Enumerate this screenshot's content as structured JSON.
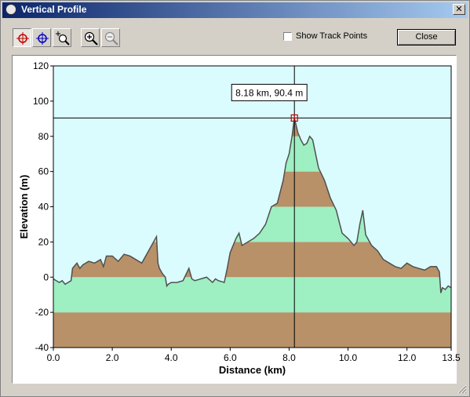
{
  "window": {
    "title": "Vertical Profile",
    "close_glyph": "✕"
  },
  "toolbar": {
    "buttons": [
      {
        "name": "select-point-tool",
        "icon": "crosshair-red-icon",
        "pressed": true
      },
      {
        "name": "pan-tool",
        "icon": "crosshair-blue-icon",
        "pressed": false
      },
      {
        "name": "zoom-region-tool",
        "icon": "zoom-region-icon",
        "pressed": false
      },
      {
        "name": "zoom-in-button",
        "icon": "zoom-in-icon",
        "pressed": false
      },
      {
        "name": "zoom-out-button",
        "icon": "zoom-out-icon",
        "pressed": false
      }
    ],
    "show_track_points": {
      "label": "Show Track Points",
      "checked": false
    },
    "close_label": "Close"
  },
  "chart_data": {
    "type": "area",
    "xlabel": "Distance  (km)",
    "ylabel": "Elevation (m)",
    "xlim": [
      0,
      13.5
    ],
    "ylim": [
      -40,
      120
    ],
    "x_ticks": [
      "0.0",
      "2.0",
      "4.0",
      "6.0",
      "8.0",
      "10.0",
      "12.0",
      "13.5"
    ],
    "x_tick_values": [
      0,
      2,
      4,
      6,
      8,
      10,
      12,
      13.5
    ],
    "y_ticks": [
      "120",
      "100",
      "80",
      "60",
      "40",
      "20",
      "0",
      "-20",
      "-40"
    ],
    "y_tick_values": [
      120,
      100,
      80,
      60,
      40,
      20,
      0,
      -20,
      -40
    ],
    "band_colors": [
      "#b89169",
      "#9eefc2"
    ],
    "background": "#dbfcff",
    "cursor": {
      "x": 8.18,
      "y": 90.4,
      "label": "8.18 km, 90.4 m"
    },
    "series": [
      {
        "x": [
          0.0,
          0.1,
          0.2,
          0.3,
          0.4,
          0.5,
          0.6,
          0.65,
          0.7,
          0.8,
          0.9,
          1.0,
          1.2,
          1.4,
          1.6,
          1.7,
          1.8,
          2.0,
          2.2,
          2.4,
          2.6,
          2.8,
          3.0,
          3.2,
          3.4,
          3.5,
          3.55,
          3.6,
          3.7,
          3.8,
          3.85,
          3.9,
          4.0,
          4.2,
          4.4,
          4.6,
          4.7,
          4.8,
          5.0,
          5.2,
          5.4,
          5.5,
          5.6,
          5.8,
          5.9,
          6.0,
          6.2,
          6.3,
          6.4,
          6.6,
          6.8,
          7.0,
          7.2,
          7.4,
          7.6,
          7.8,
          7.9,
          8.0,
          8.1,
          8.18,
          8.3,
          8.4,
          8.5,
          8.6,
          8.7,
          8.8,
          8.9,
          9.0,
          9.2,
          9.4,
          9.6,
          9.8,
          10.0,
          10.2,
          10.3,
          10.4,
          10.5,
          10.6,
          10.8,
          11.0,
          11.2,
          11.4,
          11.6,
          11.8,
          12.0,
          12.2,
          12.4,
          12.6,
          12.8,
          13.0,
          13.1,
          13.15,
          13.2,
          13.3,
          13.4,
          13.5
        ],
        "y": [
          -1,
          -2,
          -3,
          -2,
          -4,
          -3,
          -2,
          5,
          6,
          8,
          5,
          7,
          9,
          8,
          10,
          6,
          12,
          12,
          9,
          13,
          12,
          10,
          8,
          14,
          20,
          23,
          8,
          5,
          2,
          0,
          -5,
          -4,
          -3,
          -3,
          -2,
          5,
          -1,
          -2,
          -1,
          0,
          -3,
          -1,
          -2,
          -3,
          5,
          14,
          22,
          25,
          18,
          20,
          22,
          25,
          30,
          40,
          42,
          55,
          65,
          70,
          80,
          90.4,
          82,
          78,
          75,
          76,
          80,
          78,
          70,
          62,
          55,
          45,
          38,
          25,
          22,
          18,
          20,
          30,
          38,
          24,
          18,
          15,
          10,
          8,
          6,
          5,
          8,
          6,
          5,
          4,
          6,
          6,
          3,
          -9,
          -6,
          -7,
          -5,
          -6
        ]
      }
    ]
  }
}
